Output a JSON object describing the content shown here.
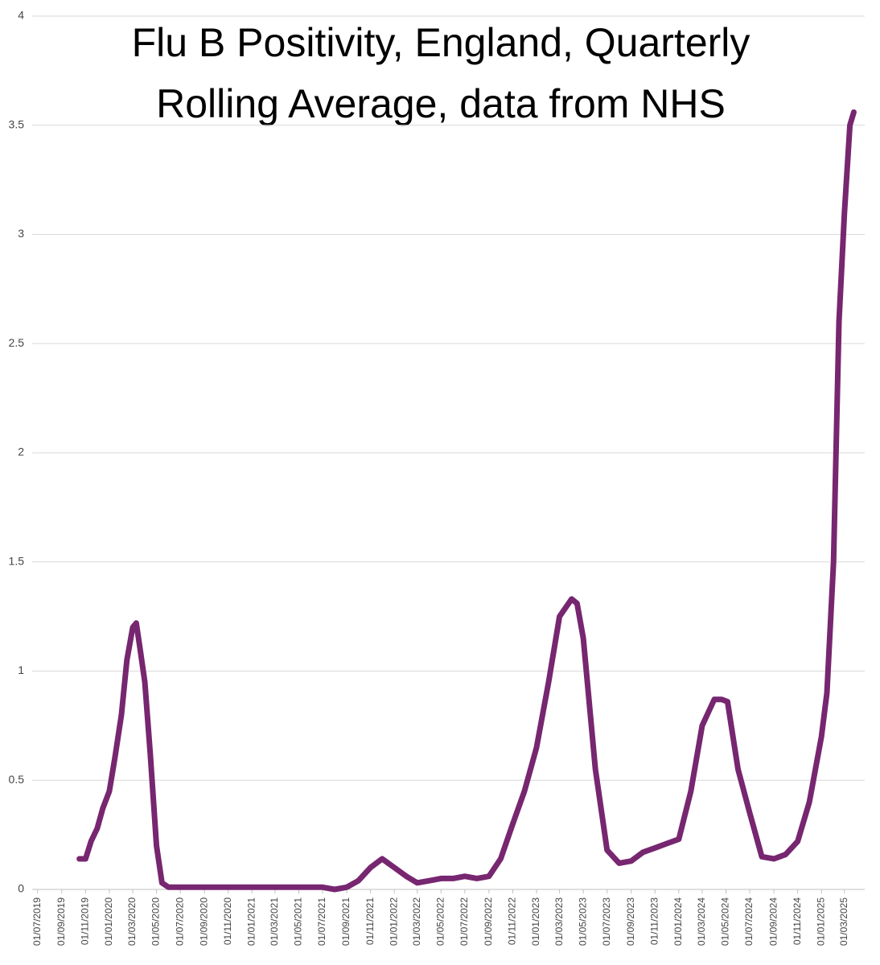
{
  "chart_data": {
    "type": "line",
    "title": [
      "Flu B Positivity, England, Quarterly",
      "Rolling Average, data from NHS"
    ],
    "x": [
      "2019-10-16",
      "2019-11-01",
      "2019-11-15",
      "2019-12-01",
      "2019-12-15",
      "2020-01-01",
      "2020-01-15",
      "2020-02-01",
      "2020-02-15",
      "2020-03-01",
      "2020-03-10",
      "2020-03-20",
      "2020-04-01",
      "2020-04-15",
      "2020-05-01",
      "2020-05-15",
      "2020-06-01",
      "2020-09-01",
      "2020-12-01",
      "2021-03-01",
      "2021-06-01",
      "2021-07-01",
      "2021-08-01",
      "2021-09-01",
      "2021-10-01",
      "2021-11-01",
      "2021-12-01",
      "2022-01-01",
      "2022-02-01",
      "2022-03-01",
      "2022-04-01",
      "2022-05-01",
      "2022-06-01",
      "2022-07-01",
      "2022-08-01",
      "2022-09-01",
      "2022-10-01",
      "2022-11-01",
      "2022-12-01",
      "2023-01-01",
      "2023-02-01",
      "2023-03-01",
      "2023-04-01",
      "2023-04-15",
      "2023-05-01",
      "2023-06-01",
      "2023-07-01",
      "2023-08-01",
      "2023-09-01",
      "2023-10-01",
      "2023-11-01",
      "2023-12-01",
      "2024-01-01",
      "2024-02-01",
      "2024-03-01",
      "2024-04-01",
      "2024-04-20",
      "2024-05-05",
      "2024-06-01",
      "2024-07-01",
      "2024-08-01",
      "2024-09-01",
      "2024-10-01",
      "2024-11-01",
      "2024-12-01",
      "2025-01-01",
      "2025-01-15",
      "2025-02-01",
      "2025-02-15",
      "2025-03-01",
      "2025-03-15",
      "2025-03-25"
    ],
    "series": [
      {
        "color": "#772670",
        "values": [
          0.14,
          0.14,
          0.22,
          0.28,
          0.37,
          0.45,
          0.6,
          0.8,
          1.05,
          1.2,
          1.22,
          1.1,
          0.95,
          0.62,
          0.2,
          0.03,
          0.01,
          0.01,
          0.01,
          0.01,
          0.01,
          0.01,
          0.0,
          0.01,
          0.04,
          0.1,
          0.14,
          0.1,
          0.06,
          0.03,
          0.04,
          0.05,
          0.05,
          0.06,
          0.05,
          0.06,
          0.14,
          0.3,
          0.45,
          0.65,
          0.95,
          1.25,
          1.33,
          1.31,
          1.15,
          0.55,
          0.18,
          0.12,
          0.13,
          0.17,
          0.19,
          0.21,
          0.23,
          0.45,
          0.75,
          0.87,
          0.87,
          0.86,
          0.55,
          0.35,
          0.15,
          0.14,
          0.16,
          0.22,
          0.4,
          0.7,
          0.9,
          1.5,
          2.6,
          3.1,
          3.5,
          3.56
        ]
      }
    ],
    "xlim": [
      "2019-06-17",
      "2025-04-22"
    ],
    "xticks": [
      {
        "value": "2019-07-01",
        "label": "01/07/2019"
      },
      {
        "value": "2019-09-01",
        "label": "01/09/2019"
      },
      {
        "value": "2019-11-01",
        "label": "01/11/2019"
      },
      {
        "value": "2020-01-01",
        "label": "01/01/2020"
      },
      {
        "value": "2020-03-01",
        "label": "01/03/2020"
      },
      {
        "value": "2020-05-01",
        "label": "01/05/2020"
      },
      {
        "value": "2020-07-01",
        "label": "01/07/2020"
      },
      {
        "value": "2020-09-01",
        "label": "01/09/2020"
      },
      {
        "value": "2020-11-01",
        "label": "01/11/2020"
      },
      {
        "value": "2021-01-01",
        "label": "01/01/2021"
      },
      {
        "value": "2021-03-01",
        "label": "01/03/2021"
      },
      {
        "value": "2021-05-01",
        "label": "01/05/2021"
      },
      {
        "value": "2021-07-01",
        "label": "01/07/2021"
      },
      {
        "value": "2021-09-01",
        "label": "01/09/2021"
      },
      {
        "value": "2021-11-01",
        "label": "01/11/2021"
      },
      {
        "value": "2022-01-01",
        "label": "01/01/2022"
      },
      {
        "value": "2022-03-01",
        "label": "01/03/2022"
      },
      {
        "value": "2022-05-01",
        "label": "01/05/2022"
      },
      {
        "value": "2022-07-01",
        "label": "01/07/2022"
      },
      {
        "value": "2022-09-01",
        "label": "01/09/2022"
      },
      {
        "value": "2022-11-01",
        "label": "01/11/2022"
      },
      {
        "value": "2023-01-01",
        "label": "01/01/2023"
      },
      {
        "value": "2023-03-01",
        "label": "01/03/2023"
      },
      {
        "value": "2023-05-01",
        "label": "01/05/2023"
      },
      {
        "value": "2023-07-01",
        "label": "01/07/2023"
      },
      {
        "value": "2023-09-01",
        "label": "01/09/2023"
      },
      {
        "value": "2023-11-01",
        "label": "01/11/2023"
      },
      {
        "value": "2024-01-01",
        "label": "01/01/2024"
      },
      {
        "value": "2024-03-01",
        "label": "01/03/2024"
      },
      {
        "value": "2024-05-01",
        "label": "01/05/2024"
      },
      {
        "value": "2024-07-01",
        "label": "01/07/2024"
      },
      {
        "value": "2024-09-01",
        "label": "01/09/2024"
      },
      {
        "value": "2024-11-01",
        "label": "01/11/2024"
      },
      {
        "value": "2025-01-01",
        "label": "01/01/2025"
      },
      {
        "value": "2025-03-01",
        "label": "01/03/2025"
      }
    ],
    "ylim": [
      0,
      4
    ],
    "yticks": [
      0,
      0.5,
      1,
      1.5,
      2,
      2.5,
      3,
      3.5,
      4
    ],
    "grid": true
  }
}
